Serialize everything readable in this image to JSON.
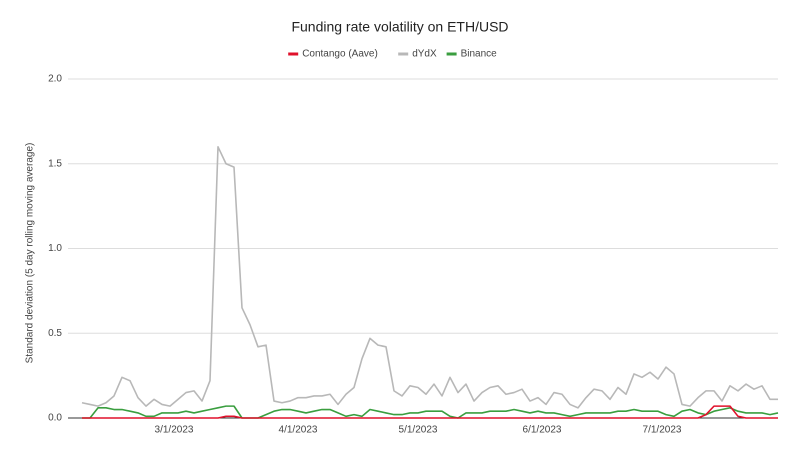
{
  "chart_data": {
    "type": "line",
    "title": "Funding rate volatility on ETH/USD",
    "y_label": "Standard deviation (5 day rolling moving average)",
    "x": [
      "2/6/2023",
      "2/8/2023",
      "2/10/2023",
      "2/12/2023",
      "2/14/2023",
      "2/16/2023",
      "2/18/2023",
      "2/20/2023",
      "2/22/2023",
      "2/24/2023",
      "2/26/2023",
      "2/28/2023",
      "3/2/2023",
      "3/4/2023",
      "3/6/2023",
      "3/8/2023",
      "3/10/2023",
      "3/12/2023",
      "3/14/2023",
      "3/16/2023",
      "3/18/2023",
      "3/20/2023",
      "3/22/2023",
      "3/24/2023",
      "3/26/2023",
      "3/28/2023",
      "3/30/2023",
      "4/1/2023",
      "4/3/2023",
      "4/5/2023",
      "4/7/2023",
      "4/9/2023",
      "4/11/2023",
      "4/13/2023",
      "4/15/2023",
      "4/17/2023",
      "4/19/2023",
      "4/21/2023",
      "4/23/2023",
      "4/25/2023",
      "4/27/2023",
      "4/29/2023",
      "5/1/2023",
      "5/3/2023",
      "5/5/2023",
      "5/7/2023",
      "5/9/2023",
      "5/11/2023",
      "5/13/2023",
      "5/15/2023",
      "5/17/2023",
      "5/19/2023",
      "5/21/2023",
      "5/23/2023",
      "5/25/2023",
      "5/27/2023",
      "5/29/2023",
      "5/31/2023",
      "6/2/2023",
      "6/4/2023",
      "6/6/2023",
      "6/8/2023",
      "6/10/2023",
      "6/12/2023",
      "6/14/2023",
      "6/16/2023",
      "6/18/2023",
      "6/20/2023",
      "6/22/2023",
      "6/24/2023",
      "6/26/2023",
      "6/28/2023",
      "6/30/2023",
      "7/2/2023",
      "7/4/2023",
      "7/6/2023",
      "7/8/2023",
      "7/10/2023",
      "7/12/2023",
      "7/14/2023",
      "7/16/2023",
      "7/18/2023",
      "7/20/2023",
      "7/22/2023",
      "7/24/2023",
      "7/26/2023",
      "7/28/2023",
      "7/30/2023"
    ],
    "series": [
      {
        "name": "Contango (Aave)",
        "color": "#e0112b",
        "values": [
          0,
          0,
          0,
          0,
          0,
          0,
          0,
          0,
          0,
          0,
          0,
          0,
          0,
          0,
          0,
          0,
          0,
          0,
          0.01,
          0.01,
          0,
          0,
          0,
          0,
          0,
          0,
          0,
          0,
          0,
          0,
          0,
          0,
          0,
          0,
          0,
          0,
          0,
          0,
          0,
          0,
          0,
          0,
          0,
          0,
          0,
          0,
          0,
          0,
          0,
          0,
          0,
          0,
          0,
          0,
          0,
          0,
          0,
          0,
          0,
          0,
          0,
          0,
          0,
          0,
          0,
          0,
          0,
          0,
          0,
          0,
          0,
          0,
          0,
          0,
          0,
          0,
          0,
          0,
          0.02,
          0.07,
          0.07,
          0.07,
          0.01,
          0,
          0,
          0,
          0,
          0
        ]
      },
      {
        "name": "dYdX",
        "color": "#b8b8b8",
        "values": [
          0.09,
          0.08,
          0.07,
          0.09,
          0.13,
          0.24,
          0.22,
          0.12,
          0.07,
          0.11,
          0.08,
          0.07,
          0.11,
          0.15,
          0.16,
          0.1,
          0.22,
          1.6,
          1.5,
          1.48,
          0.65,
          0.55,
          0.42,
          0.43,
          0.1,
          0.09,
          0.1,
          0.12,
          0.12,
          0.13,
          0.13,
          0.14,
          0.08,
          0.14,
          0.18,
          0.35,
          0.47,
          0.43,
          0.42,
          0.16,
          0.13,
          0.19,
          0.18,
          0.14,
          0.2,
          0.13,
          0.24,
          0.15,
          0.2,
          0.1,
          0.15,
          0.18,
          0.19,
          0.14,
          0.15,
          0.17,
          0.1,
          0.12,
          0.08,
          0.15,
          0.14,
          0.08,
          0.06,
          0.12,
          0.17,
          0.16,
          0.11,
          0.18,
          0.14,
          0.26,
          0.24,
          0.27,
          0.23,
          0.3,
          0.26,
          0.08,
          0.07,
          0.12,
          0.16,
          0.16,
          0.1,
          0.19,
          0.16,
          0.2,
          0.17,
          0.19,
          0.11,
          0.11
        ]
      },
      {
        "name": "Binance",
        "color": "#3a9e3f",
        "values": [
          0,
          0,
          0.06,
          0.06,
          0.05,
          0.05,
          0.04,
          0.03,
          0.01,
          0.01,
          0.03,
          0.03,
          0.03,
          0.04,
          0.03,
          0.04,
          0.05,
          0.06,
          0.07,
          0.07,
          0,
          0,
          0,
          0.02,
          0.04,
          0.05,
          0.05,
          0.04,
          0.03,
          0.04,
          0.05,
          0.05,
          0.03,
          0.01,
          0.02,
          0.01,
          0.05,
          0.04,
          0.03,
          0.02,
          0.02,
          0.03,
          0.03,
          0.04,
          0.04,
          0.04,
          0.01,
          0,
          0.03,
          0.03,
          0.03,
          0.04,
          0.04,
          0.04,
          0.05,
          0.04,
          0.03,
          0.04,
          0.03,
          0.03,
          0.02,
          0.01,
          0.02,
          0.03,
          0.03,
          0.03,
          0.03,
          0.04,
          0.04,
          0.05,
          0.04,
          0.04,
          0.04,
          0.02,
          0.01,
          0.04,
          0.05,
          0.03,
          0.02,
          0.04,
          0.05,
          0.06,
          0.04,
          0.03,
          0.03,
          0.03,
          0.02,
          0.03
        ]
      }
    ],
    "xticks": [
      "3/1/2023",
      "4/1/2023",
      "5/1/2023",
      "6/1/2023",
      "7/1/2023"
    ],
    "ylim": [
      0,
      2
    ],
    "yticks": [
      {
        "value": 0,
        "label": "0.0"
      },
      {
        "value": 0.5,
        "label": "0.5"
      },
      {
        "value": 1,
        "label": "1.0"
      },
      {
        "value": 1.5,
        "label": "1.5"
      },
      {
        "value": 2,
        "label": "2.0"
      }
    ],
    "grid": true,
    "legend": "top"
  }
}
